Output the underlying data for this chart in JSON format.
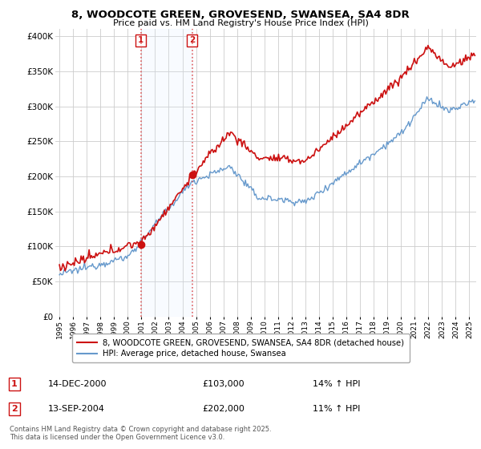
{
  "title": "8, WOODCOTE GREEN, GROVESEND, SWANSEA, SA4 8DR",
  "subtitle": "Price paid vs. HM Land Registry's House Price Index (HPI)",
  "ytick_values": [
    0,
    50000,
    100000,
    150000,
    200000,
    250000,
    300000,
    350000,
    400000
  ],
  "ylim": [
    0,
    410000
  ],
  "xlim_start": 1994.7,
  "xlim_end": 2025.5,
  "background_color": "#ffffff",
  "plot_bg_color": "#ffffff",
  "grid_color": "#cccccc",
  "red_color": "#cc1111",
  "blue_color": "#6699cc",
  "shade_color": "#ddeeff",
  "vline_color": "#dd4444",
  "sale1_x": 2000.96,
  "sale1_y": 103000,
  "sale2_x": 2004.71,
  "sale2_y": 202000,
  "legend_red_label": "8, WOODCOTE GREEN, GROVESEND, SWANSEA, SA4 8DR (detached house)",
  "legend_blue_label": "HPI: Average price, detached house, Swansea",
  "footnote": "Contains HM Land Registry data © Crown copyright and database right 2025.\nThis data is licensed under the Open Government Licence v3.0.",
  "xtick_years": [
    1995,
    1996,
    1997,
    1998,
    1999,
    2000,
    2001,
    2002,
    2003,
    2004,
    2005,
    2006,
    2007,
    2008,
    2009,
    2010,
    2011,
    2012,
    2013,
    2014,
    2015,
    2016,
    2017,
    2018,
    2019,
    2020,
    2021,
    2022,
    2023,
    2024,
    2025
  ]
}
